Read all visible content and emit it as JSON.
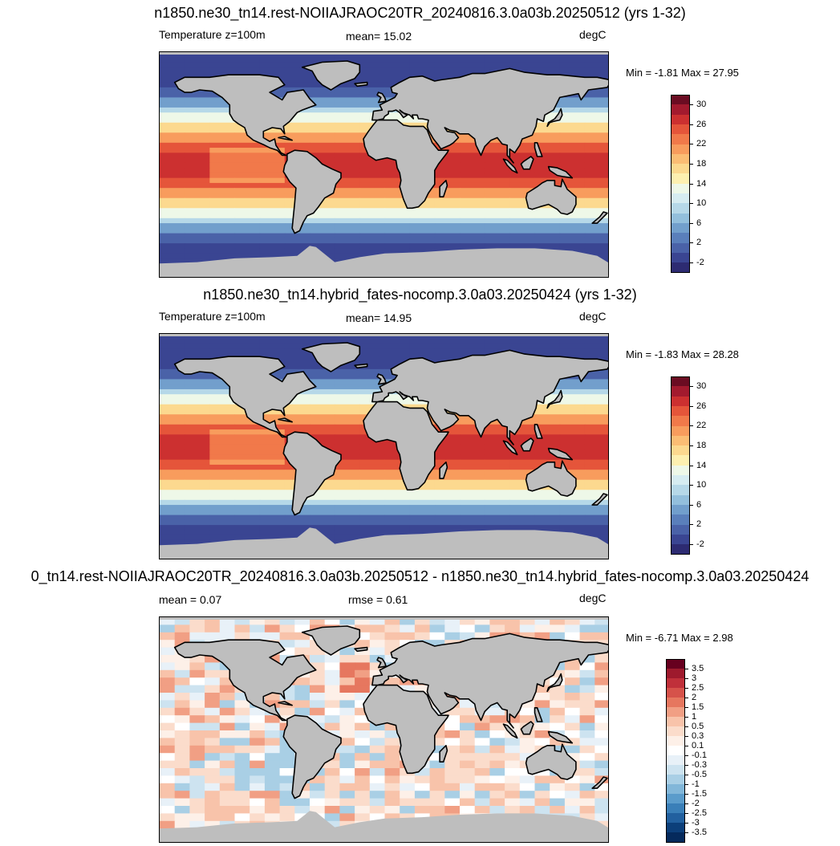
{
  "panels": [
    {
      "title": "n1850.ne30_tn14.rest-NOIIAJRAOC20TR_20240816.3.0a03b.20250512 (yrs 1-32)",
      "left_label": "Temperature z=100m",
      "center_label": "mean=  15.02",
      "units": "degC",
      "minmax": "Min =  -1.81 Max =  27.95",
      "map_type": "absolute",
      "colorbar": {
        "labels": [
          "30",
          "26",
          "22",
          "18",
          "14",
          "10",
          "6",
          "2",
          "-2"
        ],
        "colors": [
          "#6b0c22",
          "#a31a2e",
          "#cc3030",
          "#e5553a",
          "#f1794a",
          "#f89c5d",
          "#fbbd74",
          "#fcd98f",
          "#fdf0b0",
          "#eef8e8",
          "#d6ecf1",
          "#b6d8e8",
          "#93bfdc",
          "#729fcc",
          "#5a7fbb",
          "#4a62a8",
          "#3a4592",
          "#2d2b72"
        ]
      }
    },
    {
      "title": "n1850.ne30_tn14.hybrid_fates-nocomp.3.0a03.20250424 (yrs 1-32)",
      "left_label": "Temperature z=100m",
      "center_label": "mean=  14.95",
      "units": "degC",
      "minmax": "Min =  -1.83 Max =  28.28",
      "map_type": "absolute",
      "colorbar": {
        "labels": [
          "30",
          "26",
          "22",
          "18",
          "14",
          "10",
          "6",
          "2",
          "-2"
        ],
        "colors": [
          "#6b0c22",
          "#a31a2e",
          "#cc3030",
          "#e5553a",
          "#f1794a",
          "#f89c5d",
          "#fbbd74",
          "#fcd98f",
          "#fdf0b0",
          "#eef8e8",
          "#d6ecf1",
          "#b6d8e8",
          "#93bfdc",
          "#729fcc",
          "#5a7fbb",
          "#4a62a8",
          "#3a4592",
          "#2d2b72"
        ]
      }
    },
    {
      "title": "0_tn14.rest-NOIIAJRAOC20TR_20240816.3.0a03b.20250512 - n1850.ne30_tn14.hybrid_fates-nocomp.3.0a03.20250424",
      "left_label": "mean =   0.07",
      "center_label": "rmse =   0.61",
      "units": "degC",
      "minmax": "Min =  -6.71 Max =   2.98",
      "map_type": "difference",
      "colorbar": {
        "labels": [
          "3.5",
          "3",
          "2.5",
          "2",
          "1.5",
          "1",
          "0.5",
          "0.3",
          "0.1",
          "-0.1",
          "-0.3",
          "-0.5",
          "-1",
          "-1.5",
          "-2",
          "-2.5",
          "-3",
          "-3.5"
        ],
        "colors": [
          "#67001f",
          "#9e1a2d",
          "#c0303a",
          "#d6524a",
          "#e6775f",
          "#f19f84",
          "#f8c3aa",
          "#fbdccb",
          "#fdf0e8",
          "#ffffff",
          "#e8f1f8",
          "#cde3f0",
          "#a9cfe5",
          "#82b7d9",
          "#5b9ccb",
          "#3a7fb8",
          "#22609f",
          "#0c3f7a",
          "#052a5c"
        ]
      }
    }
  ]
}
